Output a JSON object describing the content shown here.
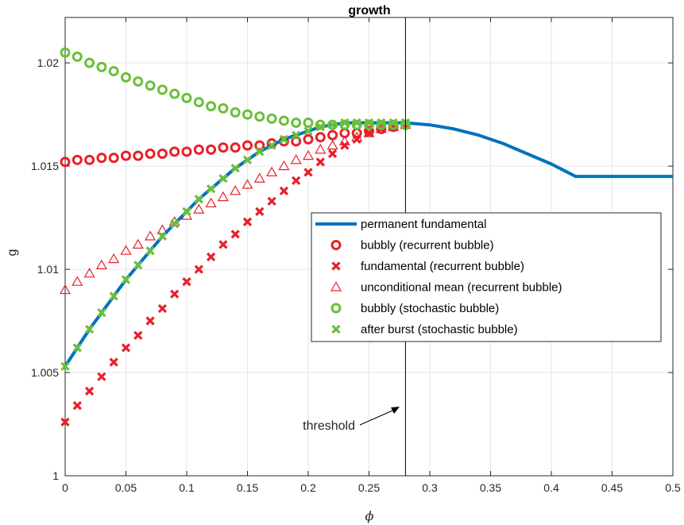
{
  "chart_data": {
    "type": "line",
    "title": "growth",
    "xlabel": "ϕ",
    "ylabel": "g",
    "xlim": [
      0,
      0.5
    ],
    "ylim": [
      1.0,
      1.0222
    ],
    "xticks": [
      0,
      0.05,
      0.1,
      0.15,
      0.2,
      0.25,
      0.3,
      0.35,
      0.4,
      0.45,
      0.5
    ],
    "xtick_labels": [
      "0",
      "0.05",
      "0.1",
      "0.15",
      "0.2",
      "0.25",
      "0.3",
      "0.35",
      "0.4",
      "0.45",
      "0.5"
    ],
    "yticks": [
      1.0,
      1.005,
      1.01,
      1.015,
      1.02
    ],
    "ytick_labels": [
      "1",
      "1.005",
      "1.01",
      "1.015",
      "1.02"
    ],
    "grid": true,
    "legend_position": "center-right",
    "colors": {
      "blue": "#0072BD",
      "red": "#E8202A",
      "green": "#6BBF3A",
      "black": "#000000"
    },
    "annotation": {
      "text": "threshold",
      "x": 0.28
    },
    "series": [
      {
        "name": "permanent fundamental",
        "marker": "line",
        "color": "#0072BD",
        "x": [
          0,
          0.01,
          0.02,
          0.03,
          0.04,
          0.05,
          0.06,
          0.07,
          0.08,
          0.09,
          0.1,
          0.11,
          0.12,
          0.13,
          0.14,
          0.15,
          0.16,
          0.17,
          0.18,
          0.19,
          0.2,
          0.21,
          0.22,
          0.23,
          0.24,
          0.25,
          0.26,
          0.27,
          0.28,
          0.3,
          0.32,
          0.34,
          0.36,
          0.38,
          0.4,
          0.41,
          0.42,
          0.43,
          0.45,
          0.5
        ],
        "y": [
          1.0053,
          1.0062,
          1.0071,
          1.0079,
          1.0087,
          1.0095,
          1.0102,
          1.0109,
          1.0116,
          1.0122,
          1.0128,
          1.0134,
          1.0139,
          1.0144,
          1.0149,
          1.0153,
          1.0157,
          1.016,
          1.0163,
          1.0165,
          1.0167,
          1.0169,
          1.017,
          1.0171,
          1.0171,
          1.0171,
          1.0171,
          1.0171,
          1.0171,
          1.017,
          1.0168,
          1.0165,
          1.0161,
          1.0156,
          1.0151,
          1.0148,
          1.0145,
          1.0145,
          1.0145,
          1.0145
        ]
      },
      {
        "name": "bubbly (recurrent bubble)",
        "marker": "circle",
        "color": "#E8202A",
        "x": [
          0,
          0.01,
          0.02,
          0.03,
          0.04,
          0.05,
          0.06,
          0.07,
          0.08,
          0.09,
          0.1,
          0.11,
          0.12,
          0.13,
          0.14,
          0.15,
          0.16,
          0.17,
          0.18,
          0.19,
          0.2,
          0.21,
          0.22,
          0.23,
          0.24,
          0.25,
          0.26,
          0.27,
          0.28
        ],
        "y": [
          1.0152,
          1.0153,
          1.0153,
          1.0154,
          1.0154,
          1.0155,
          1.0155,
          1.0156,
          1.0156,
          1.0157,
          1.0157,
          1.0158,
          1.0158,
          1.0159,
          1.0159,
          1.016,
          1.016,
          1.0161,
          1.0162,
          1.0162,
          1.0163,
          1.0164,
          1.0165,
          1.0166,
          1.0166,
          1.0167,
          1.0168,
          1.0169,
          1.017
        ]
      },
      {
        "name": "fundamental (recurrent bubble)",
        "marker": "x",
        "color": "#E8202A",
        "x": [
          0,
          0.01,
          0.02,
          0.03,
          0.04,
          0.05,
          0.06,
          0.07,
          0.08,
          0.09,
          0.1,
          0.11,
          0.12,
          0.13,
          0.14,
          0.15,
          0.16,
          0.17,
          0.18,
          0.19,
          0.2,
          0.21,
          0.22,
          0.23,
          0.24,
          0.25,
          0.26,
          0.27,
          0.28
        ],
        "y": [
          1.0026,
          1.0034,
          1.0041,
          1.0048,
          1.0055,
          1.0062,
          1.0068,
          1.0075,
          1.0081,
          1.0088,
          1.0094,
          1.01,
          1.0106,
          1.0112,
          1.0117,
          1.0123,
          1.0128,
          1.0133,
          1.0138,
          1.0143,
          1.0147,
          1.0152,
          1.0156,
          1.016,
          1.0163,
          1.0166,
          1.0168,
          1.0169,
          1.017
        ]
      },
      {
        "name": "unconditional mean (recurrent bubble)",
        "marker": "triangle",
        "color": "#E8202A",
        "x": [
          0,
          0.01,
          0.02,
          0.03,
          0.04,
          0.05,
          0.06,
          0.07,
          0.08,
          0.09,
          0.1,
          0.11,
          0.12,
          0.13,
          0.14,
          0.15,
          0.16,
          0.17,
          0.18,
          0.19,
          0.2,
          0.21,
          0.22,
          0.23,
          0.24,
          0.25,
          0.26,
          0.27,
          0.28
        ],
        "y": [
          1.009,
          1.0094,
          1.0098,
          1.0102,
          1.0105,
          1.0109,
          1.0112,
          1.0116,
          1.0119,
          1.0123,
          1.0126,
          1.0129,
          1.0132,
          1.0135,
          1.0138,
          1.0141,
          1.0144,
          1.0147,
          1.015,
          1.0153,
          1.0155,
          1.0158,
          1.016,
          1.0162,
          1.0164,
          1.0166,
          1.0168,
          1.0169,
          1.017
        ]
      },
      {
        "name": "bubbly (stochastic bubble)",
        "marker": "circle",
        "color": "#6BBF3A",
        "x": [
          0,
          0.01,
          0.02,
          0.03,
          0.04,
          0.05,
          0.06,
          0.07,
          0.08,
          0.09,
          0.1,
          0.11,
          0.12,
          0.13,
          0.14,
          0.15,
          0.16,
          0.17,
          0.18,
          0.19,
          0.2,
          0.21,
          0.22,
          0.23,
          0.24,
          0.25,
          0.26,
          0.27,
          0.28
        ],
        "y": [
          1.0205,
          1.0203,
          1.02,
          1.0198,
          1.0196,
          1.0193,
          1.0191,
          1.0189,
          1.0187,
          1.0185,
          1.0183,
          1.0181,
          1.0179,
          1.0178,
          1.0176,
          1.0175,
          1.0174,
          1.0173,
          1.0172,
          1.0171,
          1.0171,
          1.017,
          1.017,
          1.017,
          1.017,
          1.017,
          1.017,
          1.017,
          1.017
        ]
      },
      {
        "name": "after burst (stochastic bubble)",
        "marker": "x",
        "color": "#6BBF3A",
        "x": [
          0,
          0.01,
          0.02,
          0.03,
          0.04,
          0.05,
          0.06,
          0.07,
          0.08,
          0.09,
          0.1,
          0.11,
          0.12,
          0.13,
          0.14,
          0.15,
          0.16,
          0.17,
          0.18,
          0.19,
          0.2,
          0.21,
          0.22,
          0.23,
          0.24,
          0.25,
          0.26,
          0.27,
          0.28
        ],
        "y": [
          1.0053,
          1.0062,
          1.0071,
          1.0079,
          1.0087,
          1.0095,
          1.0102,
          1.0109,
          1.0116,
          1.0122,
          1.0128,
          1.0134,
          1.0139,
          1.0144,
          1.0149,
          1.0153,
          1.0157,
          1.016,
          1.0163,
          1.0165,
          1.0167,
          1.0169,
          1.017,
          1.0171,
          1.0171,
          1.0171,
          1.0171,
          1.0171,
          1.0171
        ]
      }
    ]
  }
}
